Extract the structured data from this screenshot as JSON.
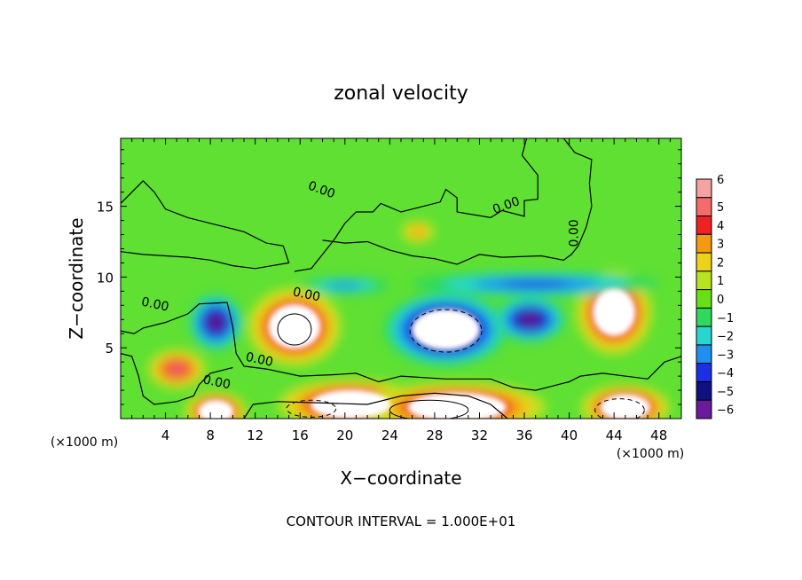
{
  "chart_data": {
    "type": "heatmap",
    "title": "zonal velocity",
    "xlabel": "X−coordinate",
    "ylabel": "Z−coordinate",
    "x_unit_left": "(×1000 m)",
    "x_unit_right": "(×1000 m)",
    "footer": "CONTOUR INTERVAL = 1.000E+01",
    "xlim": [
      0,
      50
    ],
    "ylim": [
      0,
      19.8
    ],
    "x_ticks": [
      4,
      8,
      12,
      16,
      20,
      24,
      28,
      32,
      36,
      40,
      44,
      48
    ],
    "y_ticks": [
      5,
      10,
      15
    ],
    "colorbar": {
      "levels": [
        6,
        5,
        4,
        3,
        2,
        1,
        0,
        -1,
        -2,
        -3,
        -4,
        -5,
        -6
      ],
      "labels": [
        "6",
        "5",
        "4",
        "3",
        "2",
        "1",
        "0",
        "−1",
        "−2",
        "−3",
        "−4",
        "−5",
        "−6"
      ],
      "colors": [
        "#f4a3a3",
        "#f56b6b",
        "#ee2222",
        "#f39a0f",
        "#ebd21c",
        "#b8e320",
        "#68e018",
        "#2fd95e",
        "#26d6cf",
        "#1f8ff0",
        "#1a2fe6",
        "#10107e",
        "#6a1a9a"
      ],
      "grid_color": "#000000"
    },
    "contour_labels": [
      "0.00",
      "0.00",
      "0.00",
      "0.00",
      "0.00",
      "0.00",
      "0.00"
    ],
    "background_value_color": "#5fe033",
    "features": [
      {
        "kind": "positive_core",
        "x": 5,
        "z": 3.5,
        "rx": 2.6,
        "rz": 1.4,
        "peak": 5
      },
      {
        "kind": "negative_core",
        "x": 8.5,
        "z": 6.8,
        "rx": 2.4,
        "rz": 2.0,
        "peak": -6
      },
      {
        "kind": "positive_core",
        "x": 15.5,
        "z": 6.5,
        "rx": 4.2,
        "rz": 2.8,
        "peak": 7
      },
      {
        "kind": "negative_core",
        "x": 29,
        "z": 6.3,
        "rx": 5.5,
        "rz": 2.6,
        "peak": -8
      },
      {
        "kind": "negative_core",
        "x": 36.5,
        "z": 7.0,
        "rx": 3.2,
        "rz": 1.6,
        "peak": -6
      },
      {
        "kind": "positive_core",
        "x": 44,
        "z": 7.5,
        "rx": 3.4,
        "rz": 3.0,
        "peak": 7
      },
      {
        "kind": "positive_core",
        "x": 8.5,
        "z": 0.5,
        "rx": 2.8,
        "rz": 1.4,
        "peak": 7
      },
      {
        "kind": "positive_core",
        "x": 20.5,
        "z": 1.0,
        "rx": 6.5,
        "rz": 1.8,
        "peak": 7
      },
      {
        "kind": "positive_core",
        "x": 30,
        "z": 0.8,
        "rx": 8.0,
        "rz": 1.8,
        "peak": 7
      },
      {
        "kind": "positive_core",
        "x": 45,
        "z": 0.8,
        "rx": 4.0,
        "rz": 1.6,
        "peak": 7
      },
      {
        "kind": "negative_band",
        "x": 37,
        "z": 9.5,
        "rx": 11.0,
        "rz": 0.9,
        "peak": -3.5
      },
      {
        "kind": "negative_band",
        "x": 20,
        "z": 9.4,
        "rx": 4.0,
        "rz": 0.6,
        "peak": -2.5
      },
      {
        "kind": "positive_patch",
        "x": 26.5,
        "z": 13.2,
        "rx": 1.5,
        "rz": 0.8,
        "peak": 2.5
      }
    ]
  }
}
